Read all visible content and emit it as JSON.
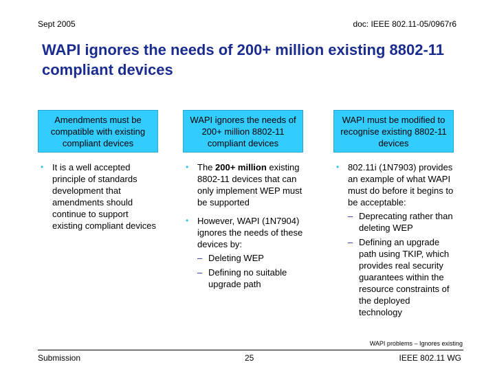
{
  "header": {
    "date": "Sept 2005",
    "doc_id": "doc: IEEE 802.11-05/0967r6"
  },
  "title": "WAPI ignores the needs of 200+ million existing 8802-11 compliant devices",
  "columns": [
    {
      "box": "Amendments must be compatible with existing compliant devices",
      "bullets": [
        {
          "text": "It is a well accepted principle of standards development that amendments should continue to support existing compliant devices"
        }
      ]
    },
    {
      "box": "WAPI ignores the needs of 200+ million 8802-11 compliant devices",
      "bullets": [
        {
          "pre": "The ",
          "bold": "200+ million",
          "post": " existing 8802-11 devices that can only implement WEP must be supported"
        },
        {
          "text": "However, WAPI (1N7904) ignores the needs of these devices by:",
          "subs": [
            "Deleting WEP",
            "Defining no suitable upgrade path"
          ]
        }
      ]
    },
    {
      "box": "WAPI must be modified to recognise existing 8802-11 devices",
      "bullets": [
        {
          "text": "802.11i (1N7903) provides an example of what WAPI must do before it begins to be acceptable:",
          "subs": [
            "Deprecating rather than deleting WEP",
            "Defining an upgrade path using TKIP, which provides real security guarantees within the resource constraints of the deployed technology"
          ]
        }
      ]
    }
  ],
  "topic_note": "WAPI problems – Ignores existing",
  "footer": {
    "left": "Submission",
    "page": "25",
    "right": "IEEE 802.11 WG"
  }
}
